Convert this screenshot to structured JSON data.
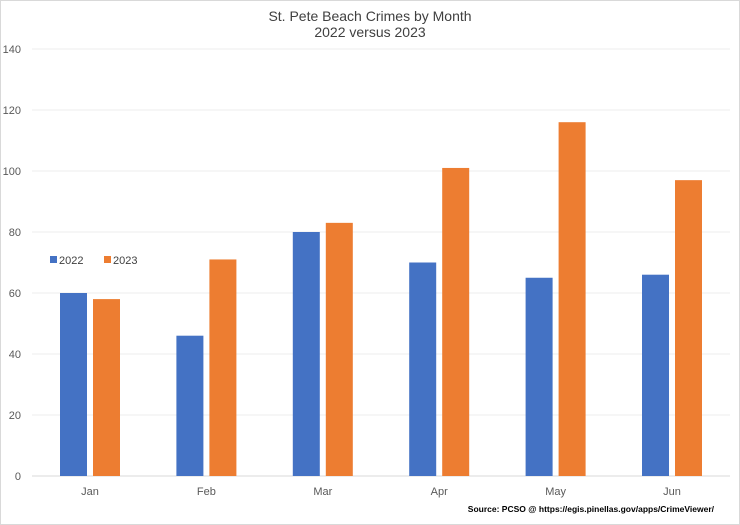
{
  "chart_data": {
    "type": "bar",
    "title": "St. Pete Beach Crimes by Month",
    "subtitle": "2022 versus 2023",
    "categories": [
      "Jan",
      "Feb",
      "Mar",
      "Apr",
      "May",
      "Jun"
    ],
    "series": [
      {
        "name": "2022",
        "color": "#4472C4",
        "values": [
          60,
          46,
          80,
          70,
          65,
          66
        ]
      },
      {
        "name": "2023",
        "color": "#ED7D31",
        "values": [
          58,
          71,
          83,
          101,
          116,
          97
        ]
      }
    ],
    "ylim": [
      0,
      140
    ],
    "yticks": [
      "0",
      "20",
      "40",
      "60",
      "80",
      "100",
      "120",
      "140"
    ],
    "grid": true,
    "legend_position": "left",
    "source": "Source: PCSO @ https://egis.pinellas.gov/apps/CrimeViewer/"
  }
}
